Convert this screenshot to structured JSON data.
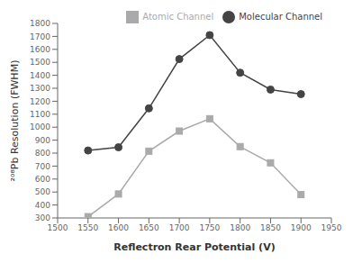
{
  "chart_data": {
    "type": "line",
    "x": [
      1550,
      1600,
      1650,
      1700,
      1750,
      1800,
      1850,
      1900
    ],
    "series": [
      {
        "name": "Atomic Channel",
        "color": "#aaaaaa",
        "marker": "square",
        "values": [
          310,
          485,
          815,
          970,
          1065,
          850,
          725,
          480
        ]
      },
      {
        "name": "Molecular Channel",
        "color": "#444444",
        "marker": "circle",
        "values": [
          820,
          845,
          1145,
          1525,
          1710,
          1420,
          1290,
          1255
        ]
      }
    ],
    "xlabel": "Reflectron Rear Potential (V)",
    "ylabel": "²⁰⁸Pb Resolution (FWHM)",
    "xlim": [
      1500,
      1950
    ],
    "ylim": [
      300,
      1800
    ],
    "xticks": [
      1500,
      1550,
      1600,
      1650,
      1700,
      1750,
      1800,
      1850,
      1900,
      1950
    ],
    "yticks": [
      300,
      400,
      500,
      600,
      700,
      800,
      900,
      1000,
      1100,
      1200,
      1300,
      1400,
      1500,
      1600,
      1700,
      1800
    ],
    "grid": false,
    "legend": "upper right"
  }
}
